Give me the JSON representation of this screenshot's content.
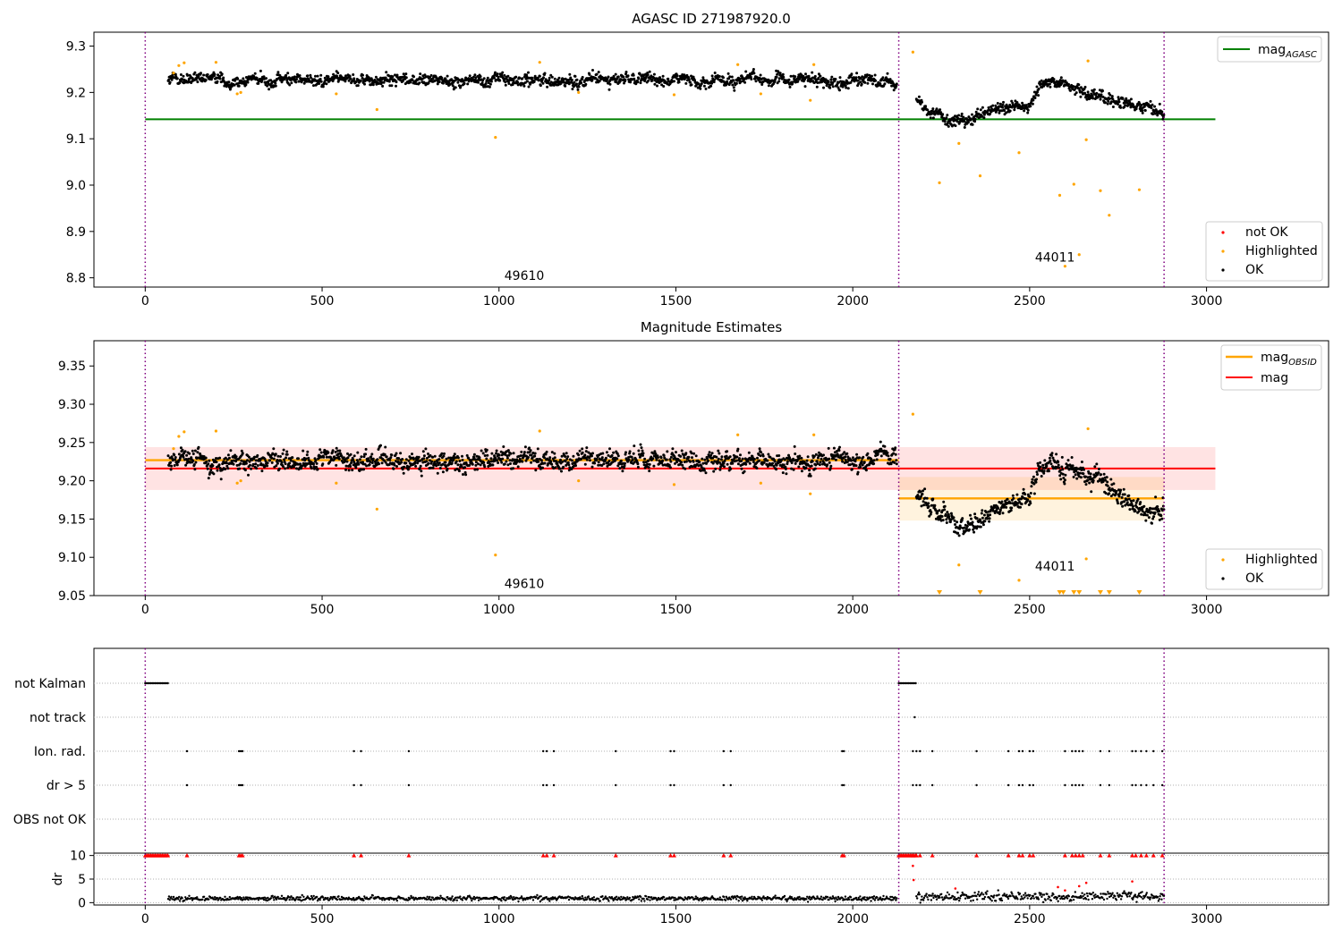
{
  "chart_data": [
    {
      "type": "scatter",
      "title": "AGASC ID 271987920.0",
      "xlim": [
        -145,
        3345
      ],
      "ylim": [
        8.78,
        9.33
      ],
      "xticks": [
        0,
        500,
        1000,
        1500,
        2000,
        2500,
        3000
      ],
      "yticks": [
        8.8,
        8.9,
        9.0,
        9.1,
        9.2,
        9.3
      ],
      "ytick_decimals": 1,
      "obs_boundaries": [
        0,
        2130,
        2880
      ],
      "obsid_labels": [
        {
          "text": "49610",
          "x": 1000,
          "y": 8.795
        },
        {
          "text": "44011",
          "x": 2500,
          "y": 8.835
        }
      ],
      "lines": [
        {
          "name": "mag_AGASC",
          "color": "#008000",
          "y": 9.142,
          "x0": 0,
          "x1": 3025
        }
      ],
      "ok_segments": [
        {
          "x0": 65,
          "x1": 2125,
          "mean": 9.227,
          "noise": 0.011
        },
        {
          "x0": 2180,
          "x1": 2880,
          "curve": [
            [
              2180,
              9.18
            ],
            [
              2250,
              9.15
            ],
            [
              2320,
              9.135
            ],
            [
              2400,
              9.16
            ],
            [
              2450,
              9.168
            ],
            [
              2500,
              9.175
            ],
            [
              2530,
              9.22
            ],
            [
              2560,
              9.226
            ],
            [
              2620,
              9.215
            ],
            [
              2660,
              9.2
            ],
            [
              2720,
              9.19
            ],
            [
              2780,
              9.175
            ],
            [
              2880,
              9.158
            ]
          ],
          "noise": 0.012
        }
      ],
      "highlighted_points": [
        [
          80,
          9.242
        ],
        [
          95,
          9.258
        ],
        [
          110,
          9.264
        ],
        [
          200,
          9.265
        ],
        [
          260,
          9.197
        ],
        [
          270,
          9.2
        ],
        [
          540,
          9.197
        ],
        [
          655,
          9.163
        ],
        [
          990,
          9.103
        ],
        [
          1115,
          9.265
        ],
        [
          1225,
          9.2
        ],
        [
          1495,
          9.195
        ],
        [
          1675,
          9.26
        ],
        [
          1740,
          9.197
        ],
        [
          1880,
          9.183
        ],
        [
          1890,
          9.26
        ],
        [
          2170,
          9.287
        ],
        [
          2245,
          9.005
        ],
        [
          2300,
          9.09
        ],
        [
          2360,
          9.02
        ],
        [
          2470,
          9.07
        ],
        [
          2585,
          8.978
        ],
        [
          2600,
          8.825
        ],
        [
          2625,
          9.002
        ],
        [
          2640,
          8.85
        ],
        [
          2660,
          9.098
        ],
        [
          2665,
          9.268
        ],
        [
          2700,
          8.988
        ],
        [
          2725,
          8.935
        ],
        [
          2810,
          8.99
        ]
      ],
      "not_ok_points": [],
      "legend_upper": [
        {
          "label": "mag",
          "sub": "AGASC",
          "kind": "line",
          "color": "#008000"
        }
      ],
      "legend_lower": [
        {
          "label": "not OK",
          "kind": "dot",
          "color": "#ff0000"
        },
        {
          "label": "Highlighted",
          "kind": "dot",
          "color": "#ffa500"
        },
        {
          "label": "OK",
          "kind": "dot",
          "color": "#000000"
        }
      ]
    },
    {
      "type": "scatter",
      "title": "Magnitude Estimates",
      "xlim": [
        -145,
        3345
      ],
      "ylim": [
        9.05,
        9.383
      ],
      "xticks": [
        0,
        500,
        1000,
        1500,
        2000,
        2500,
        3000
      ],
      "yticks": [
        9.05,
        9.1,
        9.15,
        9.2,
        9.25,
        9.3,
        9.35
      ],
      "ytick_decimals": 2,
      "obs_boundaries": [
        0,
        2130,
        2880
      ],
      "obsid_labels": [
        {
          "text": "49610",
          "x": 1000,
          "y": 9.06
        },
        {
          "text": "44011",
          "x": 2500,
          "y": 9.083
        }
      ],
      "bands": [
        {
          "x0": 0,
          "x1": 3025,
          "y0": 9.188,
          "y1": 9.244,
          "color": "#ff0000",
          "opacity": 0.11
        },
        {
          "x0": 2130,
          "x1": 2880,
          "y0": 9.148,
          "y1": 9.205,
          "color": "#ffa500",
          "opacity": 0.13
        }
      ],
      "lines": [
        {
          "name": "mag",
          "color": "#ff0000",
          "y": 9.216,
          "x0": 0,
          "x1": 3025
        },
        {
          "name": "mag_OBSID",
          "color": "#ffa500",
          "y": 9.227,
          "x0": 0,
          "x1": 2130
        },
        {
          "name": "mag_OBSID",
          "color": "#ffa500",
          "y": 9.177,
          "x0": 2130,
          "x1": 2880
        }
      ],
      "ok_segments": [
        {
          "x0": 65,
          "x1": 2125,
          "mean": 9.227,
          "noise": 0.011
        },
        {
          "x0": 2180,
          "x1": 2880,
          "curve": [
            [
              2180,
              9.18
            ],
            [
              2250,
              9.15
            ],
            [
              2320,
              9.135
            ],
            [
              2400,
              9.16
            ],
            [
              2450,
              9.168
            ],
            [
              2500,
              9.175
            ],
            [
              2530,
              9.22
            ],
            [
              2560,
              9.226
            ],
            [
              2620,
              9.215
            ],
            [
              2660,
              9.2
            ],
            [
              2720,
              9.19
            ],
            [
              2780,
              9.175
            ],
            [
              2880,
              9.158
            ]
          ],
          "noise": 0.012
        }
      ],
      "highlighted_points": [
        [
          80,
          9.242
        ],
        [
          95,
          9.258
        ],
        [
          110,
          9.264
        ],
        [
          200,
          9.265
        ],
        [
          260,
          9.197
        ],
        [
          270,
          9.2
        ],
        [
          540,
          9.197
        ],
        [
          655,
          9.163
        ],
        [
          990,
          9.103
        ],
        [
          1115,
          9.265
        ],
        [
          1225,
          9.2
        ],
        [
          1495,
          9.195
        ],
        [
          1675,
          9.26
        ],
        [
          1740,
          9.197
        ],
        [
          1880,
          9.183
        ],
        [
          1890,
          9.26
        ],
        [
          2170,
          9.287
        ],
        [
          2300,
          9.09
        ],
        [
          2470,
          9.07
        ],
        [
          2660,
          9.098
        ],
        [
          2665,
          9.268
        ]
      ],
      "below_limit_markers": [
        2245,
        2360,
        2585,
        2595,
        2625,
        2640,
        2700,
        2725,
        2810
      ],
      "legend_upper": [
        {
          "label": "mag",
          "sub": "OBSID",
          "kind": "line",
          "color": "#ffa500"
        },
        {
          "label": "mag",
          "kind": "line",
          "color": "#ff0000"
        }
      ],
      "legend_lower": [
        {
          "label": "Highlighted",
          "kind": "dot",
          "color": "#ffa500"
        },
        {
          "label": "OK",
          "kind": "dot",
          "color": "#000000"
        }
      ]
    },
    {
      "type": "scatter",
      "title": "",
      "xlim": [
        -145,
        3345
      ],
      "xticks": [
        0,
        500,
        1000,
        1500,
        2000,
        2500,
        3000
      ],
      "obs_boundaries": [
        0,
        2130,
        2880
      ],
      "flag_rows": [
        "not Kalman",
        "not track",
        "Ion. rad.",
        "dr > 5",
        "OBS not OK"
      ],
      "flags": {
        "not Kalman": [
          [
            0,
            65
          ],
          [
            2130,
            2180
          ]
        ],
        "not track": [
          2175
        ],
        "Ion. rad.": [
          118,
          265,
          270,
          275,
          590,
          610,
          745,
          1125,
          1135,
          1155,
          1330,
          1485,
          1495,
          1635,
          1655,
          1970,
          1975,
          2170,
          2180,
          2190,
          2225,
          2350,
          2440,
          2470,
          2480,
          2500,
          2510,
          2600,
          2620,
          2630,
          2640,
          2650,
          2700,
          2725,
          2790,
          2800,
          2815,
          2830,
          2850,
          2875
        ],
        "dr > 5": [
          118,
          265,
          270,
          275,
          590,
          610,
          745,
          1125,
          1135,
          1155,
          1330,
          1485,
          1495,
          1635,
          1655,
          1970,
          1975,
          2170,
          2180,
          2190,
          2225,
          2350,
          2440,
          2470,
          2480,
          2500,
          2510,
          2600,
          2620,
          2630,
          2640,
          2650,
          2700,
          2725,
          2790,
          2800,
          2815,
          2830,
          2850,
          2875
        ],
        "OBS not OK": []
      },
      "dr_label": "dr",
      "dr_yticks": [
        0,
        5,
        10
      ],
      "dr_ylim": [
        -0.5,
        10.5
      ],
      "dr_clip": 10,
      "dr_red_points": [
        [
          2170,
          7.8
        ],
        [
          2172,
          4.8
        ],
        [
          2290,
          3.0
        ],
        [
          2580,
          3.3
        ],
        [
          2600,
          2.6
        ],
        [
          2640,
          3.5
        ],
        [
          2660,
          4.2
        ],
        [
          2790,
          4.5
        ]
      ]
    }
  ]
}
